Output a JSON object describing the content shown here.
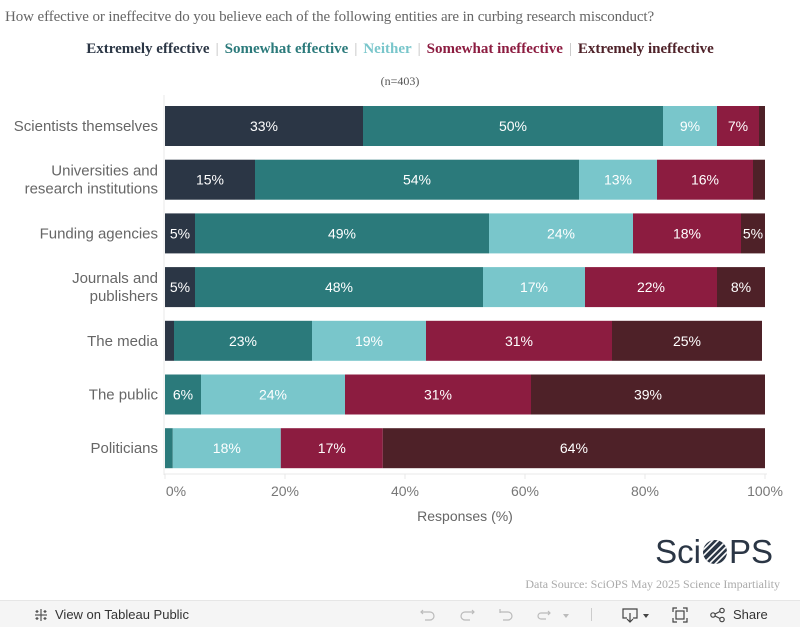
{
  "question": "How effective or ineffecitve do you believe each of the following entities are in curbing research misconduct?",
  "legend": [
    {
      "label": "Extremely effective",
      "color": "#2b3645"
    },
    {
      "label": "Somewhat effective",
      "color": "#2b7a7b"
    },
    {
      "label": "Neither",
      "color": "#79c6cb"
    },
    {
      "label": "Somewhat ineffective",
      "color": "#8c1c40"
    },
    {
      "label": "Extremely ineffective",
      "color": "#4e2128"
    }
  ],
  "sample_size": "(n=403)",
  "chart_data": {
    "type": "bar",
    "orientation": "horizontal",
    "stacked": true,
    "title": "How effective or ineffecitve do you believe each of the following entities are in curbing research misconduct?",
    "subtitle": "(n=403)",
    "xlabel": "Responses (%)",
    "ylabel": "",
    "xlim": [
      0,
      100
    ],
    "x_ticks": [
      "0%",
      "20%",
      "40%",
      "60%",
      "80%",
      "100%"
    ],
    "x_tick_values": [
      0,
      20,
      40,
      60,
      80,
      100
    ],
    "grid": false,
    "legend_position": "top",
    "categories": [
      [
        "Scientists themselves"
      ],
      [
        "Universities and",
        "research institutions"
      ],
      [
        "Funding agencies"
      ],
      [
        "Journals and",
        "publishers"
      ],
      [
        "The media"
      ],
      [
        "The public"
      ],
      [
        "Politicians"
      ]
    ],
    "series": [
      {
        "name": "Extremely effective",
        "color": "#2b3645",
        "values": [
          33,
          15,
          5,
          5,
          1.5,
          0,
          0
        ]
      },
      {
        "name": "Somewhat effective",
        "color": "#2b7a7b",
        "values": [
          50,
          54,
          49,
          48,
          23,
          6,
          1.3
        ]
      },
      {
        "name": "Neither",
        "color": "#79c6cb",
        "values": [
          9,
          13,
          24,
          17,
          19,
          24,
          18
        ]
      },
      {
        "name": "Somewhat ineffective",
        "color": "#8c1c40",
        "values": [
          7,
          16,
          18,
          22,
          31,
          31,
          17
        ]
      },
      {
        "name": "Extremely ineffective",
        "color": "#4e2128",
        "values": [
          1,
          3,
          5,
          8,
          25,
          39,
          64
        ]
      }
    ],
    "data_labels": [
      [
        "33%",
        "50%",
        "9%",
        "7%",
        ""
      ],
      [
        "15%",
        "54%",
        "13%",
        "16%",
        ""
      ],
      [
        "5%",
        "49%",
        "24%",
        "18%",
        "5%"
      ],
      [
        "5%",
        "48%",
        "17%",
        "22%",
        "8%"
      ],
      [
        "",
        "23%",
        "19%",
        "31%",
        "25%"
      ],
      [
        "",
        "6%",
        "24%",
        "31%",
        "39%"
      ],
      [
        "",
        "",
        "18%",
        "17%",
        "64%"
      ]
    ]
  },
  "branding": {
    "logo_left": "Sci",
    "logo_right": "PS",
    "source": "Data Source: SciOPS May 2025 Science Impartiality"
  },
  "toolbar": {
    "view_on_tableau": "View on Tableau Public",
    "share": "Share"
  }
}
